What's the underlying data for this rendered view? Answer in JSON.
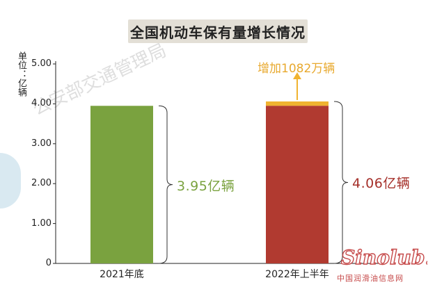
{
  "title": "全国机动车保有量增长情况",
  "colors": {
    "bar_2021": "#7aa23f",
    "bar_2022": "#b13a30",
    "increase": "#f0b330",
    "axis": "#222222",
    "value_2021": "#7aa23f",
    "value_2022": "#a5302a"
  },
  "chart_data": {
    "type": "bar",
    "ylabel": "单位：亿辆",
    "ylim": [
      0,
      5
    ],
    "yticks": [
      "0",
      "1.00",
      "2.00",
      "3.00",
      "4.00",
      "5.00"
    ],
    "categories": [
      "2021年底",
      "2022年上半年"
    ],
    "values": [
      3.95,
      4.06
    ],
    "value_labels": [
      "3.95亿辆",
      "4.06亿辆"
    ],
    "increase": {
      "label": "增加1082万辆",
      "amount": 0.1082
    }
  },
  "watermark": {
    "logo_text": "Sinolub.com",
    "subtitle": "中国润滑油信息网",
    "stamp_text": "公安部交通管理局"
  }
}
